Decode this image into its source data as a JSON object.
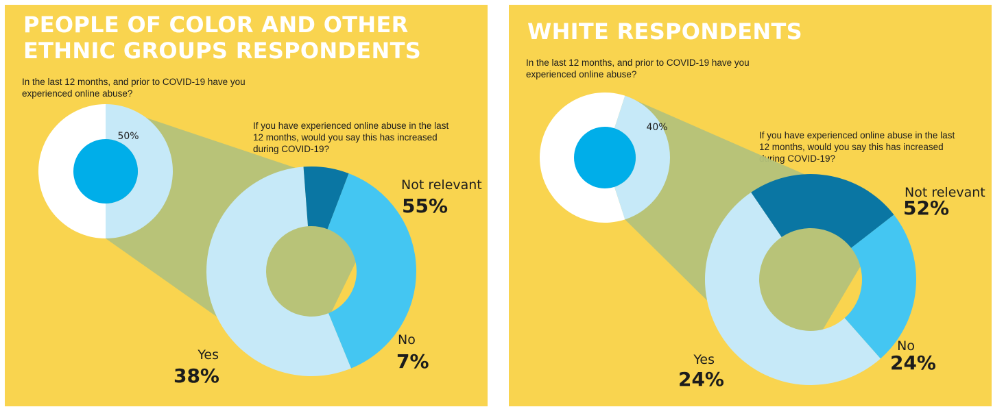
{
  "colors": {
    "background": "#f9d44f",
    "title": "#ffffff",
    "yes": "#44c6f2",
    "no": "#0a76a3",
    "not_relevant": "#c6e9f8",
    "experienced": "#00aee9",
    "not_experienced": "#ffffff",
    "connector": "#b4c27a"
  },
  "chart_data": [
    {
      "type": "pie",
      "title": "PEOPLE OF COLOR AND OTHER ETHNIC GROUPS RESPONDENTS",
      "question1": "In the last 12 months, and prior to COVID-19 have you experienced online abuse?",
      "question2": "If you have experienced online abuse in the last 12 months, would you say this has increased during COVID-19?",
      "experienced_pct": 50,
      "experienced_label": "50%",
      "categories": [
        "Not relevant",
        "No",
        "Yes"
      ],
      "values": [
        55,
        7,
        38
      ],
      "value_labels": [
        "55%",
        "7%",
        "38%"
      ]
    },
    {
      "type": "pie",
      "title": "WHITE RESPONDENTS",
      "question1": "In the last 12 months, and prior to COVID-19 have you experienced online abuse?",
      "question2": "If you have experienced online abuse in the last 12 months, would you say this has increased during COVID-19?",
      "experienced_pct": 40,
      "experienced_label": "40%",
      "categories": [
        "Not relevant",
        "No",
        "Yes"
      ],
      "values": [
        52,
        24,
        24
      ],
      "value_labels": [
        "52%",
        "24%",
        "24%"
      ]
    }
  ]
}
